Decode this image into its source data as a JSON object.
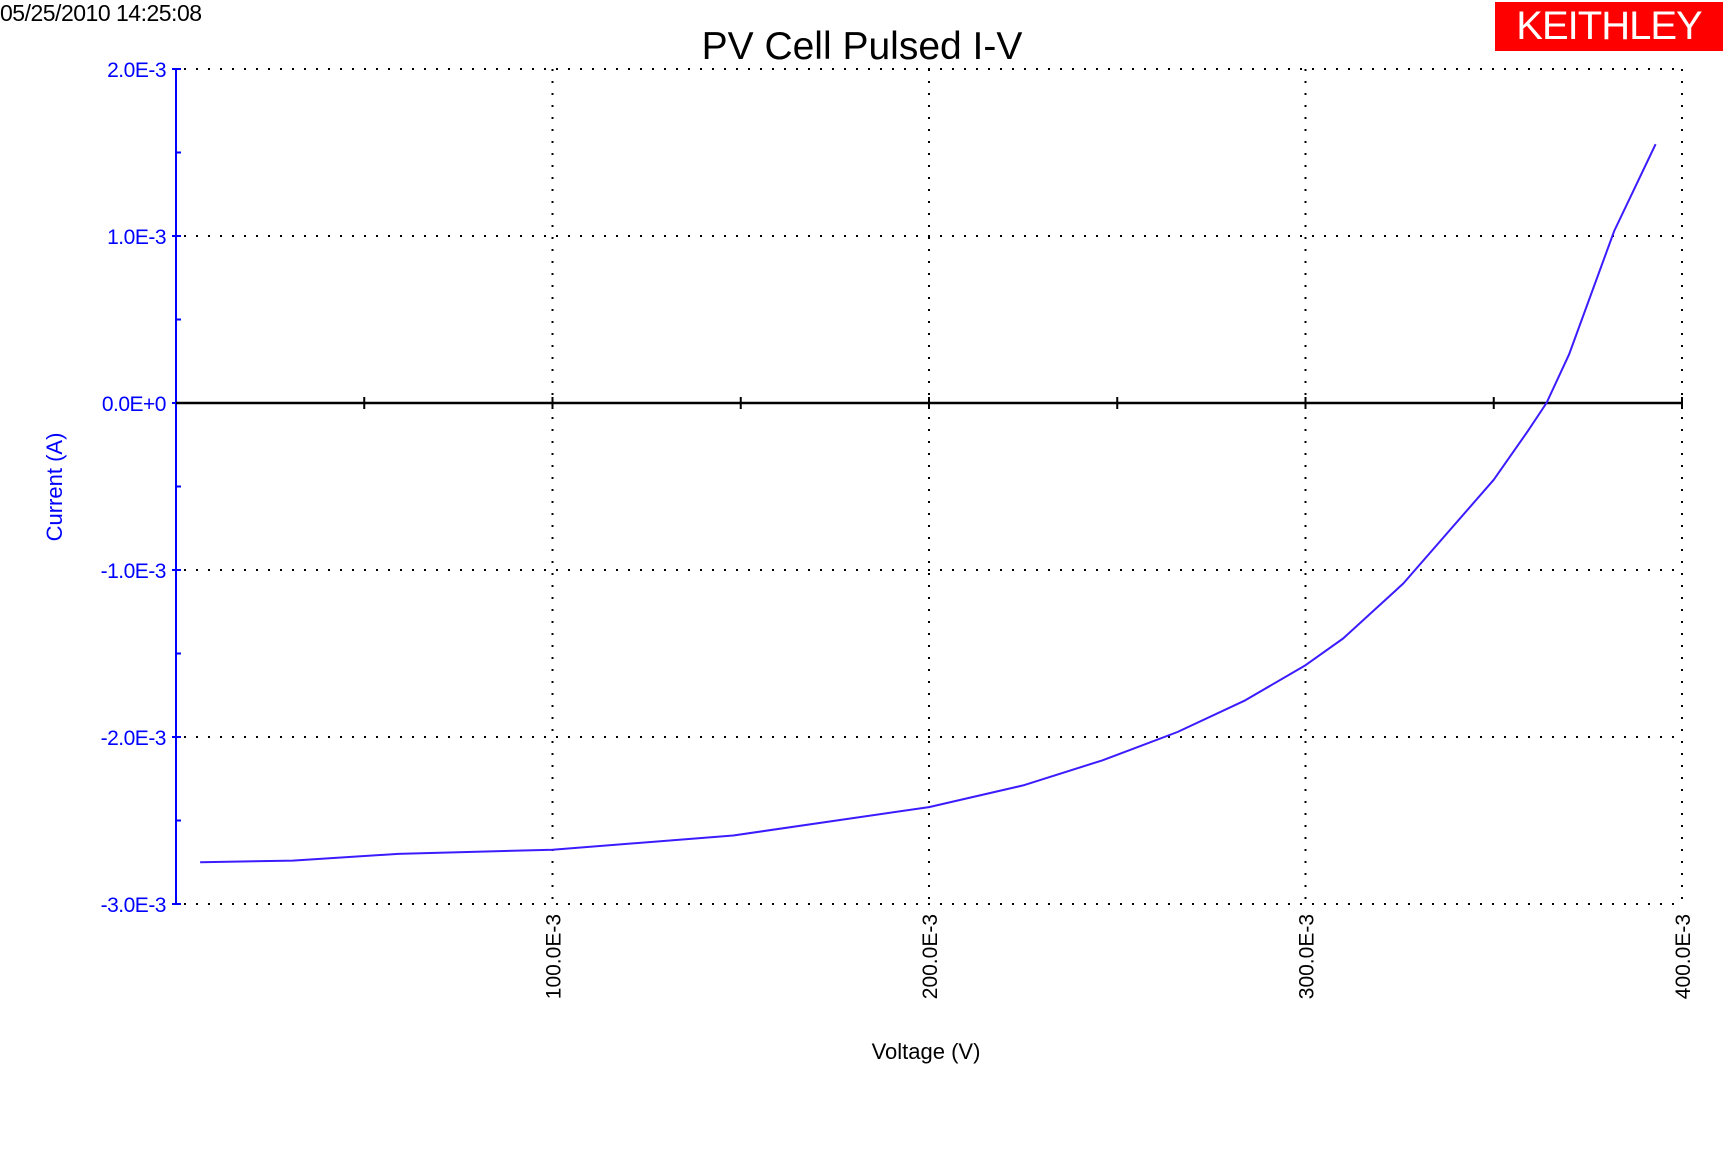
{
  "timestamp": "05/25/2010 14:25:08",
  "logo_text": "KEITHLEY",
  "colors": {
    "axis_text": "#0000ff",
    "series": "#3b1cff",
    "logo_bg": "#ff0000",
    "zero_line": "#000000"
  },
  "chart_data": {
    "type": "line",
    "title": "PV Cell Pulsed I-V",
    "xlabel": "Voltage (V)",
    "ylabel": "Current (A)",
    "xlim": [
      0,
      0.4
    ],
    "ylim": [
      -0.003,
      0.002
    ],
    "grid": true,
    "grid_style": "dotted",
    "x_ticks": [
      0.1,
      0.2,
      0.3,
      0.4
    ],
    "x_tick_labels": [
      "100.0E-3",
      "200.0E-3",
      "300.0E-3",
      "400.0E-3"
    ],
    "y_ticks": [
      0.002,
      0.001,
      0,
      -0.001,
      -0.002,
      -0.003
    ],
    "y_tick_labels": [
      "2.0E-3",
      "1.0E-3",
      "0.0E+0",
      "-1.0E-3",
      "-2.0E-3",
      "-3.0E-3"
    ],
    "series": [
      {
        "x": [
          0.0064,
          0.031,
          0.059,
          0.1,
          0.148,
          0.2,
          0.225,
          0.246,
          0.266,
          0.284,
          0.3,
          0.31,
          0.326,
          0.35,
          0.359,
          0.364,
          0.37,
          0.382,
          0.393
        ],
        "y": [
          -0.00275,
          -0.00274,
          -0.0027,
          -0.002675,
          -0.00259,
          -0.00242,
          -0.00229,
          -0.00214,
          -0.00197,
          -0.00178,
          -0.00157,
          -0.00141,
          -0.00108,
          -0.00046,
          -0.00017,
          0.0,
          0.00029,
          0.00103,
          0.00155
        ]
      }
    ]
  }
}
